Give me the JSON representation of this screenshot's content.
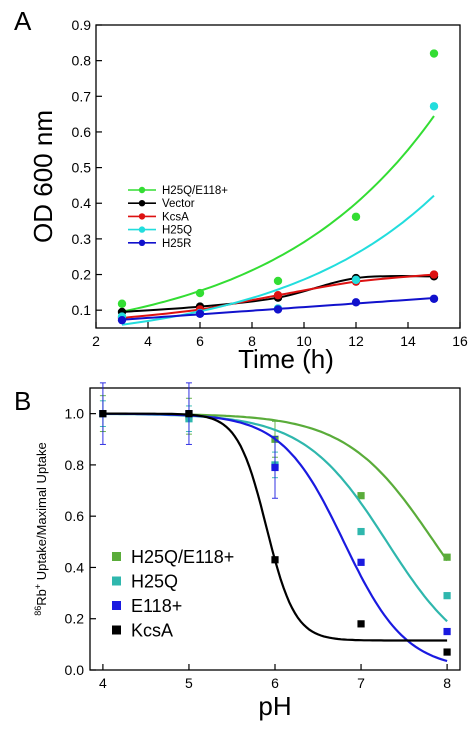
{
  "chart_data": [
    {
      "panel": "A",
      "type": "scatter",
      "xlabel": "Time (h)",
      "ylabel": "OD 600 nm",
      "xlim": [
        2,
        16
      ],
      "ylim": [
        0.05,
        0.9
      ],
      "xticks": [
        "2",
        "4",
        "6",
        "8",
        "10",
        "12",
        "14",
        "16"
      ],
      "yticks": [
        "0.1",
        "0.2",
        "0.3",
        "0.4",
        "0.5",
        "0.6",
        "0.7",
        "0.8",
        "0.9"
      ],
      "xtick_values": [
        2,
        4,
        6,
        8,
        10,
        12,
        14,
        16
      ],
      "ytick_values": [
        0.1,
        0.2,
        0.3,
        0.4,
        0.5,
        0.6,
        0.7,
        0.8,
        0.9
      ],
      "legend_position": "center-left",
      "series": [
        {
          "name": "H25Q/E118+",
          "color": "#33dd33",
          "x": [
            3,
            6,
            9,
            12,
            15
          ],
          "y": [
            0.118,
            0.148,
            0.182,
            0.362,
            0.82
          ],
          "fit": "exponential"
        },
        {
          "name": "Vector",
          "color": "#000000",
          "x": [
            3,
            6,
            9,
            12,
            15
          ],
          "y": [
            0.095,
            0.11,
            0.135,
            0.19,
            0.195
          ],
          "fit": "smooth"
        },
        {
          "name": "KcsA",
          "color": "#dd1111",
          "x": [
            3,
            6,
            9,
            12,
            15
          ],
          "y": [
            0.078,
            0.102,
            0.142,
            0.18,
            0.2
          ],
          "fit": "smooth"
        },
        {
          "name": "H25Q",
          "color": "#22dddd",
          "x": [
            3,
            6,
            9,
            12,
            15
          ],
          "y": [
            0.082,
            0.092,
            0.105,
            0.185,
            0.672
          ],
          "fit": "exponential"
        },
        {
          "name": "H25R",
          "color": "#1111cc",
          "x": [
            3,
            6,
            9,
            12,
            15
          ],
          "y": [
            0.072,
            0.09,
            0.102,
            0.122,
            0.132
          ],
          "fit": "line"
        }
      ]
    },
    {
      "panel": "B",
      "type": "scatter",
      "xlabel": "pH",
      "ylabel_sup": "86",
      "ylabel_main": "Rb",
      "ylabel_sup2": "+",
      "ylabel_rest": " Uptake/Maximal Uptake",
      "xlim": [
        3.85,
        8.15
      ],
      "ylim": [
        0,
        1.1
      ],
      "xticks": [
        "4",
        "5",
        "6",
        "7",
        "8"
      ],
      "yticks": [
        "0.0",
        "0.2",
        "0.4",
        "0.6",
        "0.8",
        "1.0"
      ],
      "xtick_values": [
        4,
        5,
        6,
        7,
        8
      ],
      "ytick_values": [
        0,
        0.2,
        0.4,
        0.6,
        0.8,
        1.0
      ],
      "legend_position": "bottom-left",
      "series": [
        {
          "name": "H25Q/E118+",
          "color": "#5aac3a",
          "x": [
            4,
            5,
            6,
            7,
            8
          ],
          "y": [
            1.0,
            0.99,
            0.9,
            0.68,
            0.44
          ],
          "pka": 7.85,
          "n": 0.85
        },
        {
          "name": "H25Q",
          "color": "#2fb7ad",
          "x": [
            4,
            5,
            6,
            7,
            8
          ],
          "y": [
            1.0,
            0.98,
            0.8,
            0.54,
            0.29
          ],
          "pka": 7.3,
          "n": 0.9
        },
        {
          "name": "E118+",
          "color": "#1a1ae0",
          "x": [
            4,
            5,
            6,
            7,
            8
          ],
          "y": [
            1.0,
            1.0,
            0.79,
            0.42,
            0.15
          ],
          "pka": 6.8,
          "n": 1.2
        },
        {
          "name": "KcsA",
          "color": "#000000",
          "x": [
            4,
            5,
            6,
            7,
            8
          ],
          "y": [
            1.0,
            1.0,
            0.43,
            0.18,
            0.07
          ],
          "pka": 5.9,
          "n": 2.6,
          "bottom": 0.115
        }
      ]
    }
  ]
}
